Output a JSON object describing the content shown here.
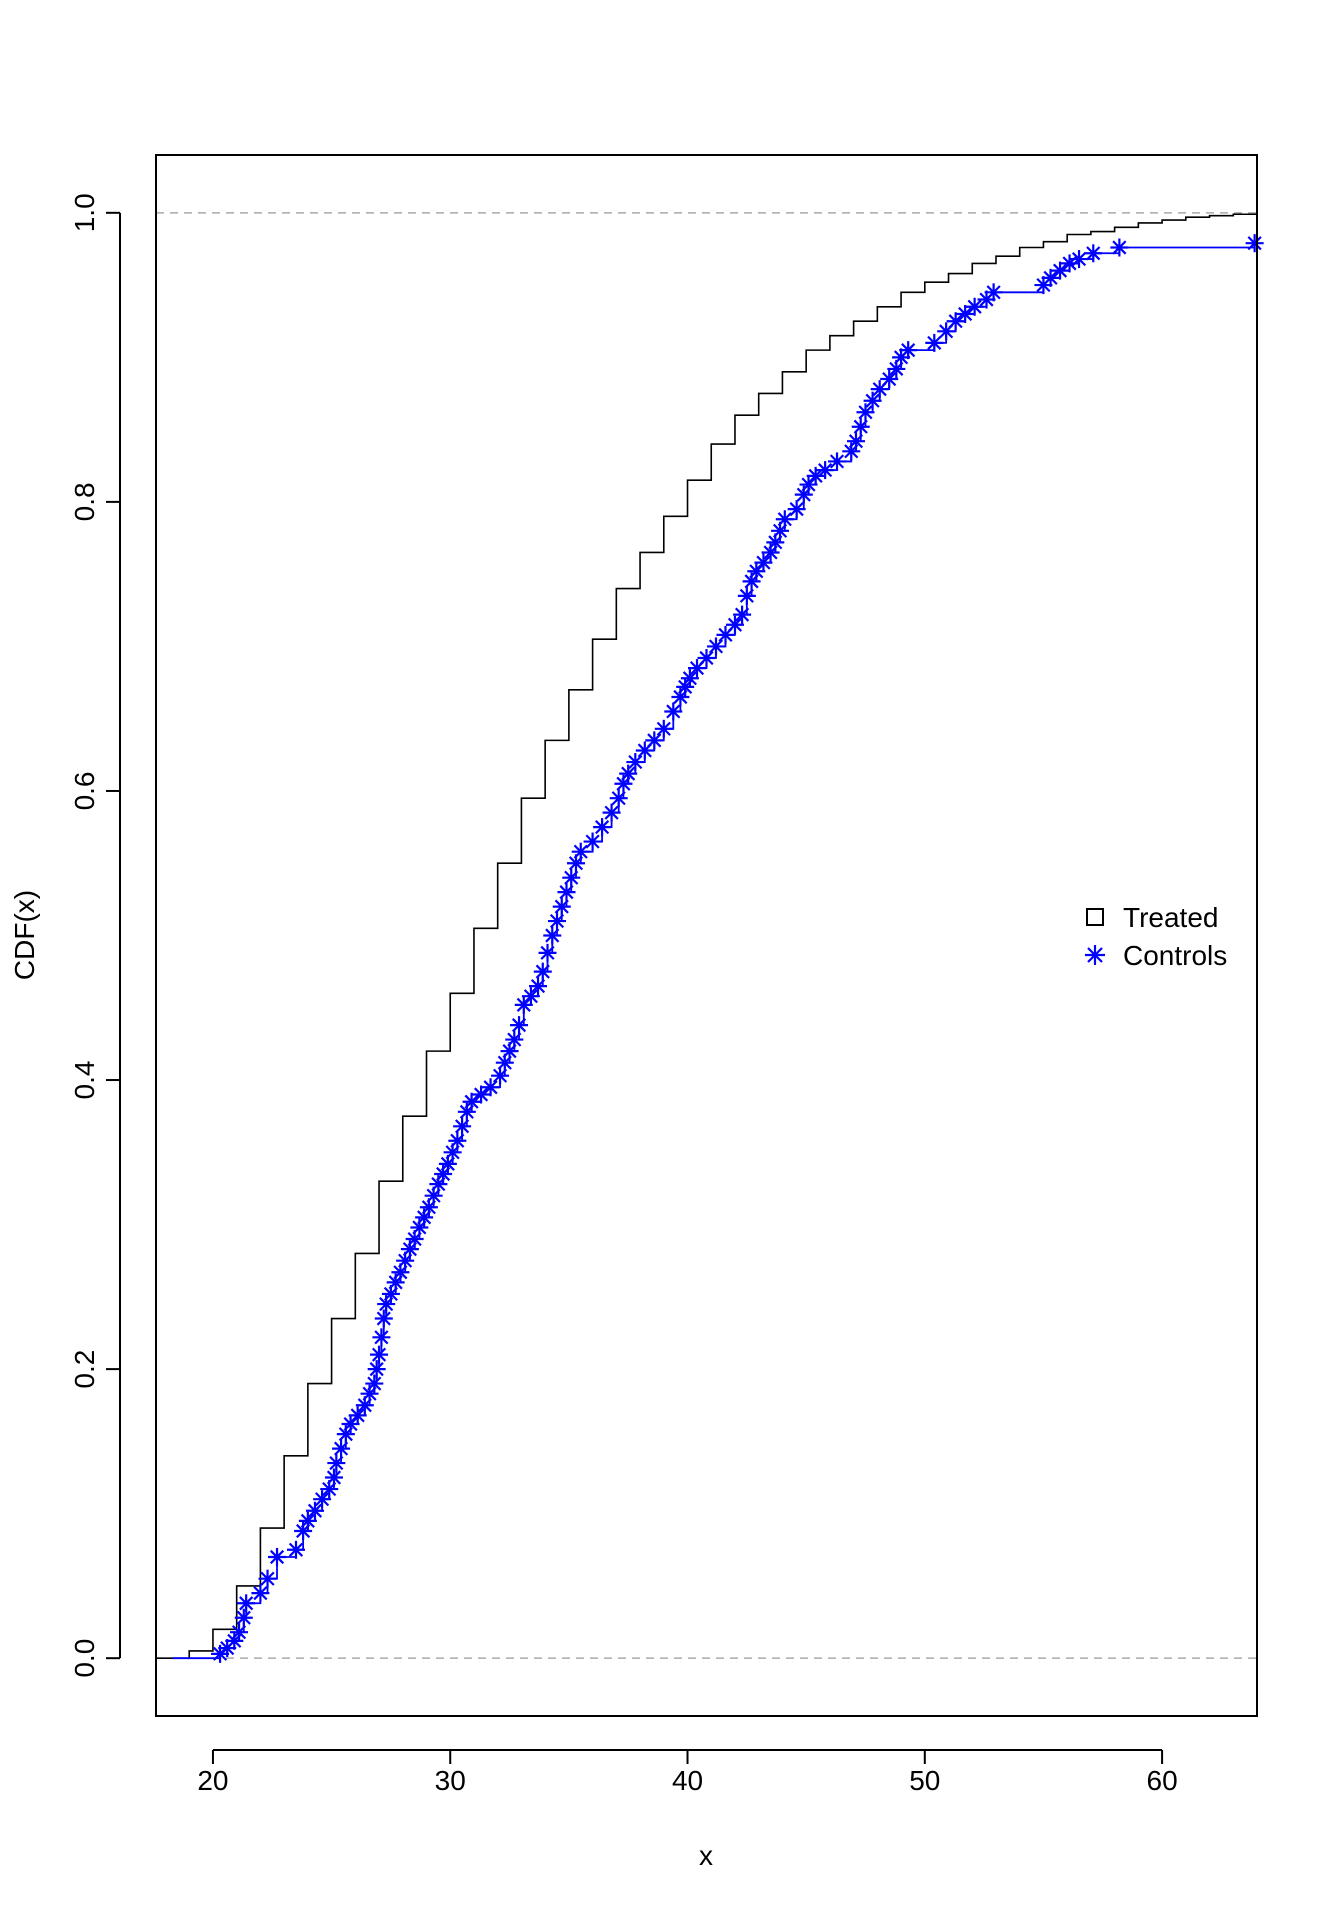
{
  "chart_data": {
    "type": "line",
    "title": "",
    "xlabel": "x",
    "ylabel": "CDF(x)",
    "xlim": [
      17.6,
      64.0
    ],
    "ylim": [
      -0.04,
      1.04
    ],
    "x_ticks": [
      20,
      30,
      40,
      50,
      60
    ],
    "y_ticks": [
      0.0,
      0.2,
      0.4,
      0.6,
      0.8,
      1.0
    ],
    "x_tick_labels": [
      "20",
      "30",
      "40",
      "50",
      "60"
    ],
    "y_tick_labels": [
      "0.0",
      "0.2",
      "0.4",
      "0.6",
      "0.8",
      "1.0"
    ],
    "reference_lines": [
      0.0,
      1.0
    ],
    "reference_line_color": "#aaaaaa",
    "legend": {
      "position": "right",
      "entries": [
        {
          "label": "Treated",
          "marker": "square-open",
          "color": "#000000"
        },
        {
          "label": "Controls",
          "marker": "asterisk",
          "color": "#0000ff"
        }
      ]
    },
    "series": [
      {
        "name": "Treated",
        "color": "#000000",
        "marker": "none",
        "step": true,
        "x": [
          18.0,
          19.0,
          20.0,
          21.0,
          22.0,
          23.0,
          24.0,
          25.0,
          26.0,
          27.0,
          28.0,
          29.0,
          30.0,
          31.0,
          32.0,
          33.0,
          34.0,
          35.0,
          36.0,
          37.0,
          38.0,
          39.0,
          40.0,
          41.0,
          42.0,
          43.0,
          44.0,
          45.0,
          46.0,
          47.0,
          48.0,
          49.0,
          50.0,
          51.0,
          52.0,
          53.0,
          54.0,
          55.0,
          56.0,
          57.0,
          58.0,
          59.0,
          60.0,
          61.0,
          62.0,
          63.0,
          64.0
        ],
        "y": [
          0.0,
          0.005,
          0.02,
          0.05,
          0.09,
          0.14,
          0.19,
          0.235,
          0.28,
          0.33,
          0.375,
          0.42,
          0.46,
          0.505,
          0.55,
          0.595,
          0.635,
          0.67,
          0.705,
          0.74,
          0.765,
          0.79,
          0.815,
          0.84,
          0.86,
          0.875,
          0.89,
          0.905,
          0.915,
          0.925,
          0.935,
          0.945,
          0.952,
          0.958,
          0.965,
          0.97,
          0.976,
          0.98,
          0.985,
          0.987,
          0.99,
          0.993,
          0.995,
          0.997,
          0.998,
          0.999,
          1.0
        ]
      },
      {
        "name": "Controls",
        "color": "#0000ff",
        "marker": "asterisk",
        "step": true,
        "x": [
          20.3,
          20.6,
          20.9,
          21.1,
          21.3,
          21.4,
          22.0,
          22.3,
          22.7,
          23.5,
          23.8,
          24.0,
          24.3,
          24.6,
          24.9,
          25.1,
          25.2,
          25.4,
          25.6,
          25.8,
          26.1,
          26.4,
          26.6,
          26.8,
          26.9,
          27.0,
          27.1,
          27.2,
          27.3,
          27.5,
          27.7,
          27.9,
          28.1,
          28.3,
          28.5,
          28.7,
          28.9,
          29.1,
          29.3,
          29.5,
          29.7,
          29.9,
          30.1,
          30.3,
          30.5,
          30.7,
          30.9,
          31.3,
          31.7,
          32.1,
          32.3,
          32.5,
          32.7,
          32.9,
          33.1,
          33.4,
          33.7,
          33.9,
          34.1,
          34.3,
          34.5,
          34.7,
          34.9,
          35.1,
          35.3,
          35.5,
          36.0,
          36.4,
          36.8,
          37.1,
          37.3,
          37.5,
          37.8,
          38.2,
          38.6,
          39.0,
          39.4,
          39.7,
          39.9,
          40.1,
          40.4,
          40.8,
          41.2,
          41.6,
          42.0,
          42.3,
          42.5,
          42.7,
          42.9,
          43.2,
          43.5,
          43.7,
          43.9,
          44.1,
          44.6,
          44.9,
          45.1,
          45.4,
          45.8,
          46.3,
          46.9,
          47.1,
          47.3,
          47.5,
          47.8,
          48.1,
          48.5,
          48.8,
          49.0,
          49.3,
          50.4,
          50.9,
          51.3,
          51.7,
          52.1,
          52.6,
          52.9,
          55.0,
          55.3,
          55.7,
          56.1,
          56.5,
          57.1,
          58.2,
          63.9
        ],
        "y": [
          0.003,
          0.007,
          0.012,
          0.018,
          0.028,
          0.038,
          0.045,
          0.055,
          0.07,
          0.075,
          0.088,
          0.095,
          0.102,
          0.11,
          0.117,
          0.125,
          0.135,
          0.145,
          0.155,
          0.162,
          0.168,
          0.175,
          0.183,
          0.19,
          0.2,
          0.21,
          0.222,
          0.235,
          0.245,
          0.252,
          0.26,
          0.267,
          0.275,
          0.283,
          0.29,
          0.298,
          0.305,
          0.312,
          0.32,
          0.328,
          0.335,
          0.342,
          0.35,
          0.358,
          0.368,
          0.378,
          0.385,
          0.39,
          0.395,
          0.403,
          0.412,
          0.42,
          0.428,
          0.438,
          0.452,
          0.458,
          0.465,
          0.475,
          0.488,
          0.5,
          0.51,
          0.52,
          0.53,
          0.54,
          0.55,
          0.558,
          0.565,
          0.575,
          0.585,
          0.595,
          0.605,
          0.612,
          0.62,
          0.628,
          0.635,
          0.643,
          0.655,
          0.665,
          0.672,
          0.678,
          0.685,
          0.692,
          0.7,
          0.708,
          0.715,
          0.722,
          0.735,
          0.745,
          0.752,
          0.758,
          0.765,
          0.772,
          0.78,
          0.788,
          0.795,
          0.805,
          0.812,
          0.818,
          0.822,
          0.828,
          0.835,
          0.842,
          0.852,
          0.862,
          0.87,
          0.878,
          0.885,
          0.892,
          0.9,
          0.905,
          0.91,
          0.918,
          0.925,
          0.93,
          0.935,
          0.94,
          0.945,
          0.95,
          0.955,
          0.96,
          0.965,
          0.968,
          0.972,
          0.976,
          0.979
        ]
      }
    ]
  }
}
